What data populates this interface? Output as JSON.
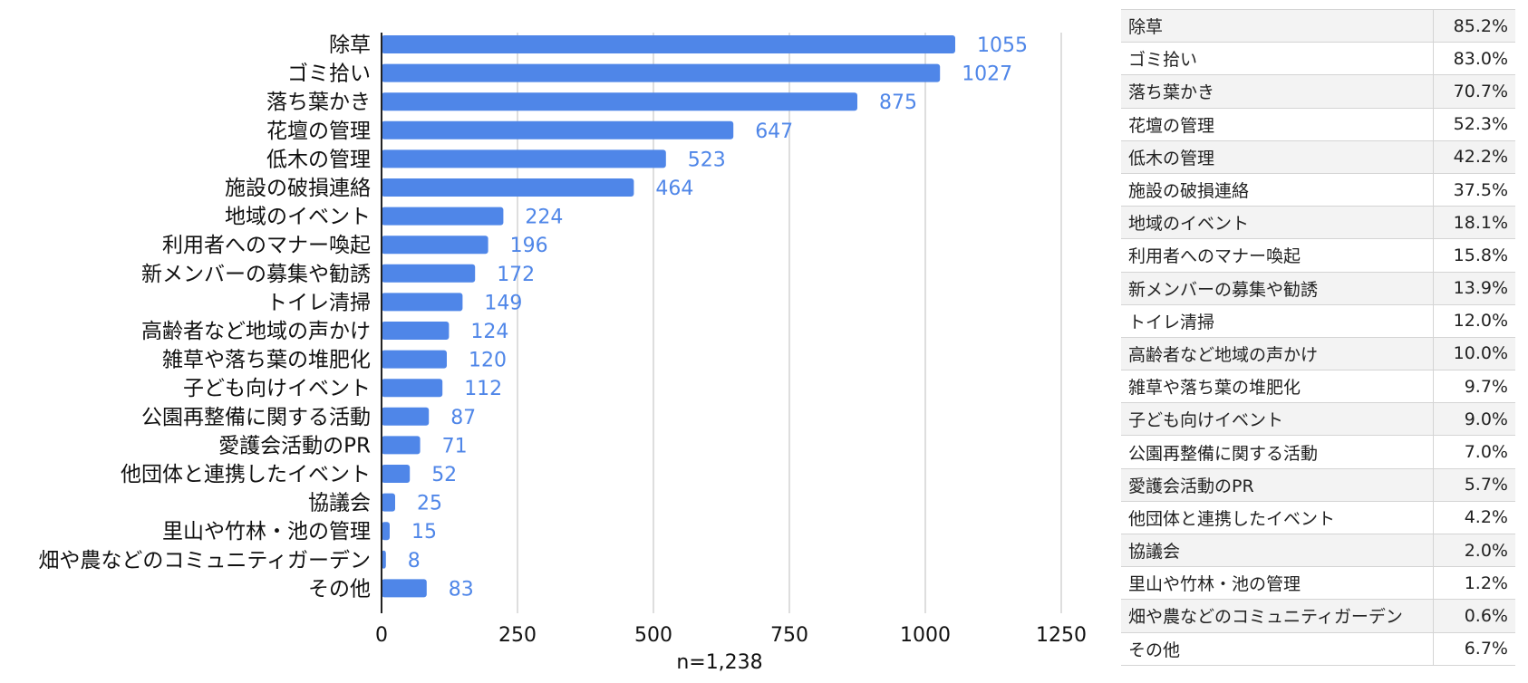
{
  "colors": {
    "bar": "#4f86e8",
    "label": "#4f86e8",
    "grid": "#cccccc",
    "axis": "#222222"
  },
  "chart_data": [
    {
      "type": "bar",
      "orientation": "horizontal",
      "categories": [
        "除草",
        "ゴミ拾い",
        "落ち葉かき",
        "花壇の管理",
        "低木の管理",
        "施設の破損連絡",
        "地域のイベント",
        "利用者へのマナー喚起",
        "新メンバーの募集や勧誘",
        "トイレ清掃",
        "高齢者など地域の声かけ",
        "雑草や落ち葉の堆肥化",
        "子ども向けイベント",
        "公園再整備に関する活動",
        "愛護会活動のPR",
        "他団体と連携したイベント",
        "協議会",
        "里山や竹林・池の管理",
        "畑や農などのコミュニティガーデン",
        "その他"
      ],
      "values": [
        1055,
        1027,
        875,
        647,
        523,
        464,
        224,
        196,
        172,
        149,
        124,
        120,
        112,
        87,
        71,
        52,
        25,
        15,
        8,
        83
      ],
      "xlabel": "n=1,238",
      "xlim": [
        0,
        1250
      ],
      "xticks": [
        0,
        250,
        500,
        750,
        1000,
        1250
      ],
      "grid": true
    },
    {
      "type": "table",
      "rows": [
        {
          "name": "除草",
          "pct": "85.2%"
        },
        {
          "name": "ゴミ拾い",
          "pct": "83.0%"
        },
        {
          "name": "落ち葉かき",
          "pct": "70.7%"
        },
        {
          "name": "花壇の管理",
          "pct": "52.3%"
        },
        {
          "name": "低木の管理",
          "pct": "42.2%"
        },
        {
          "name": "施設の破損連絡",
          "pct": "37.5%"
        },
        {
          "name": "地域のイベント",
          "pct": "18.1%"
        },
        {
          "name": "利用者へのマナー喚起",
          "pct": "15.8%"
        },
        {
          "name": "新メンバーの募集や勧誘",
          "pct": "13.9%"
        },
        {
          "name": "トイレ清掃",
          "pct": "12.0%"
        },
        {
          "name": "高齢者など地域の声かけ",
          "pct": "10.0%"
        },
        {
          "name": "雑草や落ち葉の堆肥化",
          "pct": "9.7%"
        },
        {
          "name": "子ども向けイベント",
          "pct": "9.0%"
        },
        {
          "name": "公園再整備に関する活動",
          "pct": "7.0%"
        },
        {
          "name": "愛護会活動のPR",
          "pct": "5.7%"
        },
        {
          "name": "他団体と連携したイベント",
          "pct": "4.2%"
        },
        {
          "name": "協議会",
          "pct": "2.0%"
        },
        {
          "name": "里山や竹林・池の管理",
          "pct": "1.2%"
        },
        {
          "name": "畑や農などのコミュニティガーデン",
          "pct": "0.6%"
        },
        {
          "name": "その他",
          "pct": "6.7%"
        }
      ]
    }
  ]
}
